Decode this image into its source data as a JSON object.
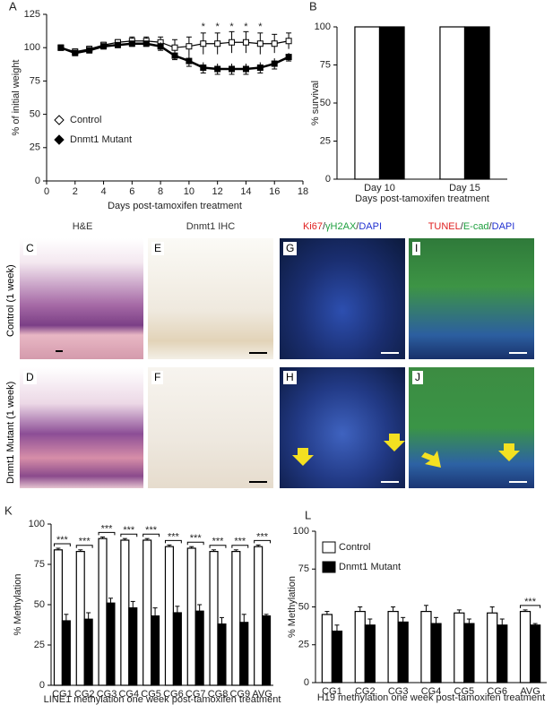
{
  "chart_data": [
    {
      "type": "line",
      "panel": "A",
      "y_label": "% of initial weight",
      "x_label": "Days post-tamoxifen treatment",
      "x": [
        1,
        2,
        3,
        4,
        5,
        6,
        7,
        8,
        9,
        10,
        11,
        12,
        13,
        14,
        15,
        16,
        17
      ],
      "series": [
        {
          "name": "Control",
          "color": "#ffffff",
          "values": [
            100,
            97,
            99,
            102,
            104,
            105,
            105,
            104,
            100,
            101,
            103,
            103,
            104,
            104,
            103,
            103,
            105
          ],
          "errors": [
            2,
            2,
            2,
            2,
            2,
            3,
            3,
            4,
            6,
            7,
            8,
            8,
            8,
            8,
            8,
            7,
            6
          ]
        },
        {
          "name": "Dnmt1 Mutant",
          "color": "#000000",
          "values": [
            100,
            96,
            98,
            101,
            102,
            103,
            103,
            101,
            94,
            90,
            85,
            84,
            84,
            84,
            85,
            88,
            93
          ],
          "errors": [
            2,
            2,
            2,
            2,
            2,
            2,
            2,
            3,
            3,
            4,
            4,
            4,
            4,
            4,
            4,
            4,
            3
          ]
        }
      ],
      "annotations": [
        {
          "x": 11,
          "text": "*"
        },
        {
          "x": 12,
          "text": "*"
        },
        {
          "x": 13,
          "text": "*"
        },
        {
          "x": 14,
          "text": "*"
        },
        {
          "x": 15,
          "text": "*"
        }
      ],
      "xlim": [
        0,
        18
      ],
      "xticks": [
        0,
        2,
        4,
        6,
        8,
        10,
        12,
        14,
        16,
        18
      ],
      "ylim": [
        0,
        125
      ],
      "yticks": [
        0,
        25,
        50,
        75,
        100,
        125
      ],
      "legend": "lower left"
    },
    {
      "type": "bar",
      "panel": "B",
      "y_label": "% survival",
      "x_label": "Days post-tamoxifen treatment",
      "categories": [
        "Day 10",
        "Day 15"
      ],
      "series": [
        {
          "name": "Control",
          "color": "#ffffff",
          "values": [
            100,
            100
          ]
        },
        {
          "name": "Dnmt1 Mutant",
          "color": "#000000",
          "values": [
            100,
            100
          ]
        }
      ],
      "ylim": [
        0,
        100
      ],
      "yticks": [
        0,
        25,
        50,
        75,
        100
      ]
    },
    {
      "type": "bar",
      "panel": "K",
      "y_label": "% Methylation",
      "x_label": "LINE1 methylation one week post-tamoxifen treatment",
      "categories": [
        "CG1",
        "CG2",
        "CG3",
        "CG4",
        "CG5",
        "CG6",
        "CG7",
        "CG8",
        "CG9",
        "AVG"
      ],
      "series": [
        {
          "name": "Control",
          "color": "#ffffff",
          "values": [
            84,
            83,
            91,
            90,
            90,
            86,
            85,
            83,
            83,
            86
          ],
          "errors": [
            1,
            1,
            1,
            1,
            1,
            1,
            1,
            1,
            1,
            1
          ]
        },
        {
          "name": "Dnmt1 Mutant",
          "color": "#000000",
          "values": [
            40,
            41,
            51,
            48,
            43,
            45,
            46,
            38,
            39,
            43
          ],
          "errors": [
            4,
            4,
            3,
            4,
            5,
            4,
            4,
            4,
            5,
            1
          ]
        }
      ],
      "significance": [
        "***",
        "***",
        "***",
        "***",
        "***",
        "***",
        "***",
        "***",
        "***",
        "***"
      ],
      "ylim": [
        0,
        100
      ],
      "yticks": [
        0,
        25,
        50,
        75,
        100
      ]
    },
    {
      "type": "bar",
      "panel": "L",
      "y_label": "% Methylation",
      "x_label": "H19 methylation one week post-tamoxifen treatment",
      "categories": [
        "CG1",
        "CG2",
        "CG3",
        "CG4",
        "CG5",
        "CG6",
        "AVG"
      ],
      "series": [
        {
          "name": "Control",
          "color": "#ffffff",
          "values": [
            45,
            47,
            47,
            47,
            46,
            46,
            47
          ],
          "errors": [
            2,
            3,
            3,
            4,
            2,
            4,
            1
          ]
        },
        {
          "name": "Dnmt1 Mutant",
          "color": "#000000",
          "values": [
            34,
            38,
            40,
            39,
            39,
            38,
            38
          ],
          "errors": [
            4,
            4,
            3,
            4,
            3,
            4,
            1
          ]
        }
      ],
      "significance": [
        null,
        null,
        null,
        null,
        null,
        null,
        "***"
      ],
      "ylim": [
        0,
        100
      ],
      "yticks": [
        0,
        25,
        50,
        75,
        100
      ],
      "legend": "upper left"
    }
  ],
  "image_panels": {
    "headers": [
      {
        "parts": [
          {
            "text": "H&E",
            "color": "#333333"
          }
        ]
      },
      {
        "parts": [
          {
            "text": "Dnmt1 IHC",
            "color": "#333333"
          }
        ]
      },
      {
        "parts": [
          {
            "text": "Ki67",
            "color": "#e02020"
          },
          {
            "text": "/",
            "color": "#333333"
          },
          {
            "text": "γH2AX",
            "color": "#20a040"
          },
          {
            "text": "/",
            "color": "#333333"
          },
          {
            "text": "DAPI",
            "color": "#2030d0"
          }
        ]
      },
      {
        "parts": [
          {
            "text": "TUNEL",
            "color": "#e02020"
          },
          {
            "text": "/",
            "color": "#333333"
          },
          {
            "text": "E-cad",
            "color": "#20a040"
          },
          {
            "text": "/",
            "color": "#333333"
          },
          {
            "text": "DAPI",
            "color": "#2030d0"
          }
        ]
      }
    ],
    "row_labels": [
      "Control (1 week)",
      "Dnmt1 Mutant (1 week)"
    ],
    "letters": [
      "C",
      "E",
      "G",
      "I",
      "D",
      "F",
      "H",
      "J"
    ]
  }
}
